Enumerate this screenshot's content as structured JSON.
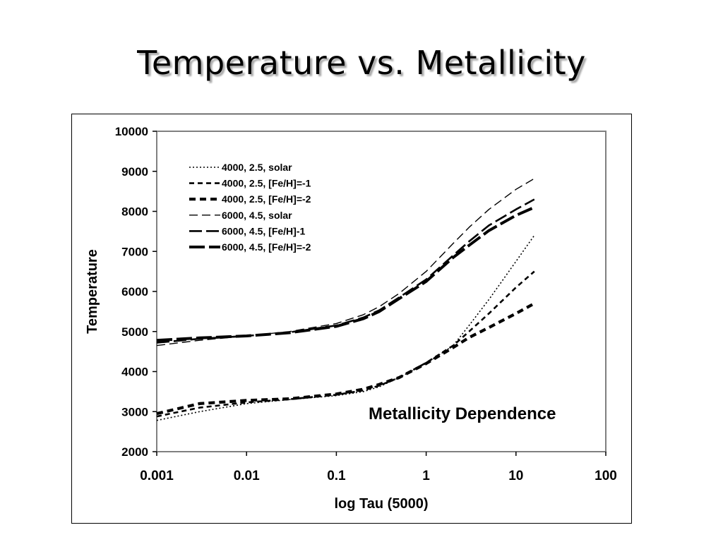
{
  "slide": {
    "title": "Temperature vs. Metallicity"
  },
  "chart_data": {
    "type": "line",
    "xlabel": "log Tau (5000)",
    "ylabel": "Temperature",
    "annotation": "Metallicity Dependence",
    "x_scale": "log",
    "xlim": [
      0.001,
      100
    ],
    "ylim": [
      2000,
      10000
    ],
    "x_ticks": [
      "0.001",
      "0.01",
      "0.1",
      "1",
      "10",
      "100"
    ],
    "y_ticks": [
      "2000",
      "3000",
      "4000",
      "5000",
      "6000",
      "7000",
      "8000",
      "9000",
      "10000"
    ],
    "grid": false,
    "legend_position": "upper-left",
    "series": [
      {
        "name": "4000, 2.5, solar",
        "style": "dotted",
        "x": [
          0.001,
          0.003,
          0.01,
          0.03,
          0.1,
          0.2,
          0.3,
          0.5,
          1,
          2,
          3,
          5,
          10,
          16
        ],
        "y": [
          2780,
          3000,
          3200,
          3300,
          3400,
          3500,
          3620,
          3850,
          4200,
          4650,
          5150,
          5800,
          6750,
          7400
        ]
      },
      {
        "name": "4000, 2.5, [Fe/H]=-1",
        "style": "dashed",
        "x": [
          0.001,
          0.003,
          0.01,
          0.03,
          0.1,
          0.2,
          0.3,
          0.5,
          1,
          2,
          3,
          5,
          10,
          16
        ],
        "y": [
          2880,
          3100,
          3230,
          3310,
          3420,
          3530,
          3650,
          3850,
          4220,
          4650,
          5000,
          5450,
          6100,
          6500
        ]
      },
      {
        "name": "4000, 2.5, [Fe/H]=-2",
        "style": "bold-dashed",
        "x": [
          0.001,
          0.003,
          0.01,
          0.03,
          0.1,
          0.2,
          0.3,
          0.5,
          1,
          2,
          3,
          5,
          10,
          16
        ],
        "y": [
          2950,
          3200,
          3280,
          3320,
          3440,
          3560,
          3680,
          3850,
          4200,
          4600,
          4850,
          5100,
          5450,
          5700
        ]
      },
      {
        "name": "6000, 4.5, solar",
        "style": "long-dashed-thin",
        "x": [
          0.001,
          0.003,
          0.01,
          0.03,
          0.1,
          0.2,
          0.3,
          0.5,
          1,
          2,
          3,
          5,
          10,
          16
        ],
        "y": [
          4650,
          4780,
          4890,
          5000,
          5200,
          5420,
          5620,
          5950,
          6500,
          7200,
          7600,
          8050,
          8550,
          8820
        ]
      },
      {
        "name": "6000, 4.5, [Fe/H]-1",
        "style": "long-dashed",
        "x": [
          0.001,
          0.003,
          0.01,
          0.03,
          0.1,
          0.2,
          0.3,
          0.5,
          1,
          2,
          3,
          5,
          10,
          16
        ],
        "y": [
          4720,
          4820,
          4890,
          4980,
          5150,
          5350,
          5530,
          5850,
          6300,
          6900,
          7250,
          7650,
          8050,
          8300
        ]
      },
      {
        "name": "6000, 4.5, [Fe/H]=-2",
        "style": "bold-long-dashed",
        "x": [
          0.001,
          0.003,
          0.01,
          0.03,
          0.1,
          0.2,
          0.3,
          0.5,
          1,
          2,
          3,
          5,
          10,
          16
        ],
        "y": [
          4780,
          4840,
          4890,
          4970,
          5130,
          5320,
          5500,
          5820,
          6250,
          6850,
          7150,
          7520,
          7900,
          8100
        ]
      }
    ]
  }
}
